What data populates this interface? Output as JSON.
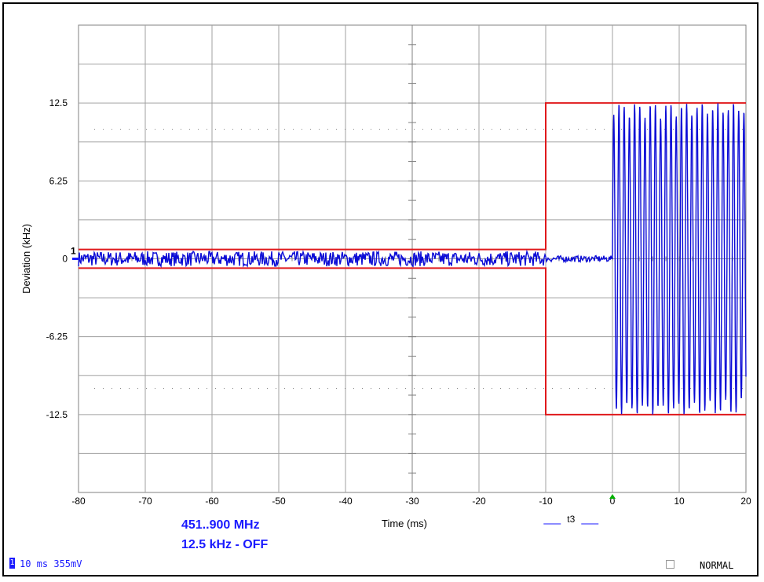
{
  "chart_data": {
    "type": "line",
    "title": "",
    "xlabel": "Time (ms)",
    "ylabel": "Deviation (kHz)",
    "xlim": [
      -80,
      20
    ],
    "ylim": [
      -18.75,
      18.75
    ],
    "x_ticks": [
      "-80",
      "-70",
      "-60",
      "-50",
      "-40",
      "-30",
      "-20",
      "-10",
      "0",
      "10",
      "20"
    ],
    "y_ticks": [
      "12.5",
      "6.25",
      "0",
      "-6.25",
      "-12.5"
    ],
    "grid": true,
    "mask": {
      "color": "#e0191c",
      "before_trigger_limit_khz": 0.75,
      "after_trigger_limit_khz": 12.5,
      "transition_ms": -10
    },
    "series": [
      {
        "color": "#0b0bd6",
        "description_values": {
          "noise_amplitude_khz_before_-10ms": 0.6,
          "noise_amplitude_khz_-10_to_0ms": 0.25,
          "oscillation_amplitude_khz_after_0ms": 12.5,
          "oscillation_start_ms": 0
        }
      }
    ],
    "channel_marker": "1",
    "trigger_marker": "t3"
  },
  "info": {
    "frequency": "451..900 MHz",
    "setting": "12.5 kHz - OFF"
  },
  "status": {
    "channel_indicator": "1",
    "timebase_text": "10 ms 355mV",
    "mode": "NORMAL"
  }
}
